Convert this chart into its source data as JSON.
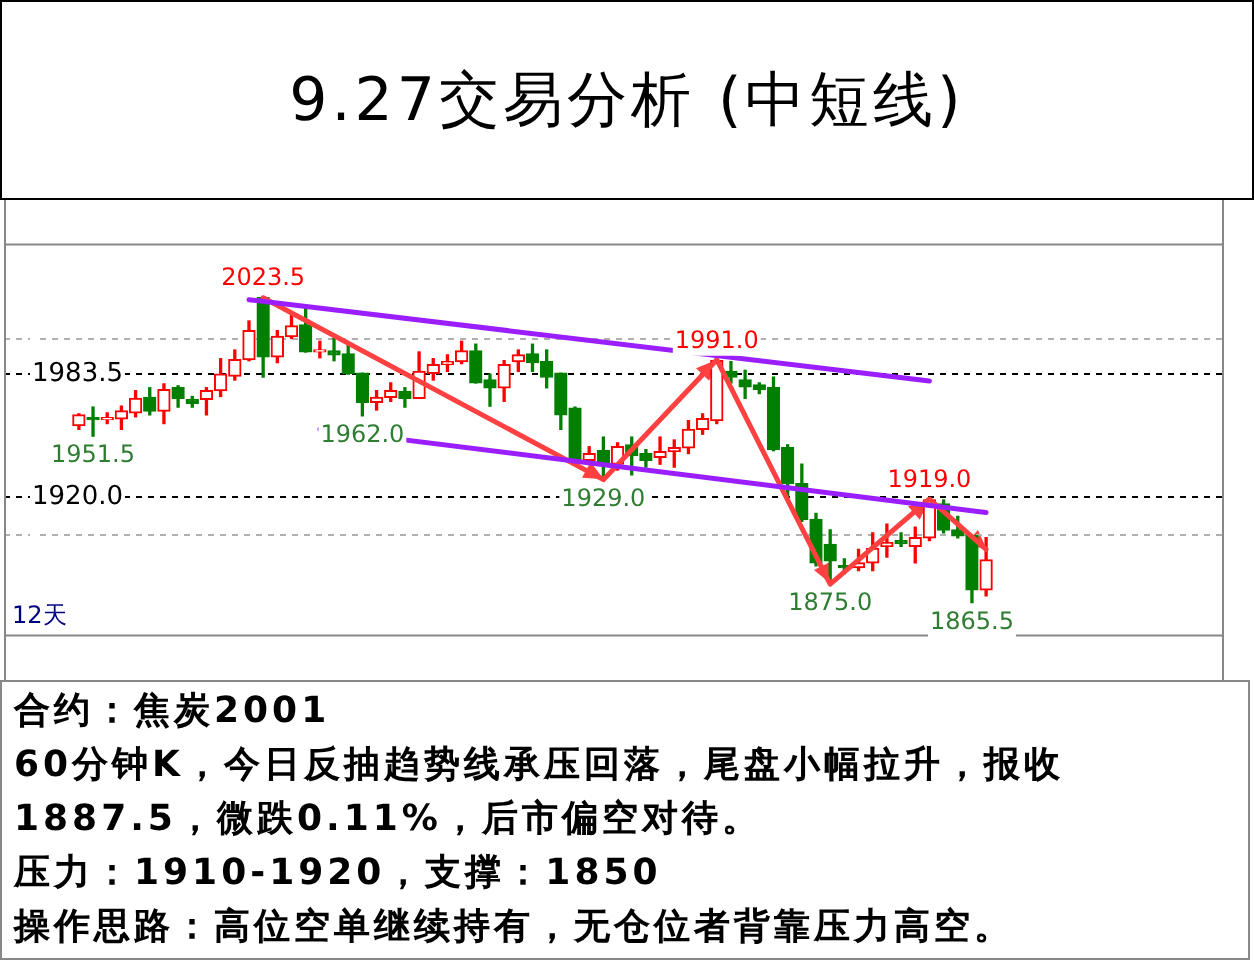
{
  "chart_data": [
    {
      "type": "candlestick",
      "title": "9.27交易分析 (中短线)",
      "categories": [
        null,
        null,
        null,
        null,
        null,
        null,
        null,
        null,
        null,
        null,
        null,
        null,
        null,
        null,
        null,
        null,
        null,
        null,
        null,
        null,
        null,
        null,
        null,
        null,
        null,
        null,
        null,
        null,
        null,
        null,
        null,
        null,
        null,
        null,
        null,
        null,
        null,
        null,
        null,
        null,
        null,
        null,
        null,
        null,
        null,
        null,
        null,
        null,
        null,
        null,
        null,
        null,
        null,
        null,
        null,
        null,
        null,
        null,
        null,
        null,
        null,
        null,
        null,
        null,
        null
      ],
      "ohlc": [
        [
          1957,
          1963,
          1955,
          1962.5
        ],
        [
          1960.5,
          1966.5,
          1951.5,
          1960
        ],
        [
          1960,
          1963.5,
          1958,
          1960.5
        ],
        [
          1960.5,
          1967,
          1955,
          1964.5
        ],
        [
          1963.5,
          1975,
          1961.5,
          1971
        ],
        [
          1971.5,
          1976.5,
          1962.5,
          1964.5
        ],
        [
          1964.5,
          1978.5,
          1958,
          1975.5
        ],
        [
          1976.5,
          1977.5,
          1966.5,
          1971
        ],
        [
          1970.5,
          1972,
          1966.5,
          1968.5
        ],
        [
          1970.5,
          1976.5,
          1962.5,
          1975
        ],
        [
          1975,
          1991.5,
          1972,
          1983.5
        ],
        [
          1982.5,
          1996,
          1980.5,
          1991
        ],
        [
          1991,
          2011,
          1990.5,
          2006
        ],
        [
          2023,
          2023.5,
          1982,
          1992.5
        ],
        [
          1992.5,
          2006,
          1989.5,
          2003
        ],
        [
          2003,
          2014.5,
          2002,
          2008.5
        ],
        [
          2009,
          2018,
          1995,
          1995
        ],
        [
          1995,
          2000.5,
          1992,
          1995.5
        ],
        [
          1995.5,
          2002,
          1990.5,
          1993.5
        ],
        [
          1994,
          1999,
          1983.5,
          1984
        ],
        [
          1984,
          1984,
          1962,
          1969
        ],
        [
          1969,
          1975,
          1965,
          1971.5
        ],
        [
          1971.5,
          1979,
          1969.5,
          1975
        ],
        [
          1974.5,
          1976.5,
          1966.5,
          1971
        ],
        [
          1971,
          1995,
          1971,
          1985
        ],
        [
          1984,
          1991.5,
          1980.5,
          1988.5
        ],
        [
          1988.5,
          1993.5,
          1985,
          1990
        ],
        [
          1990,
          2000.5,
          1989,
          1995.5
        ],
        [
          1995.5,
          1999,
          1979,
          1979
        ],
        [
          1980.5,
          1983.5,
          1967,
          1976.5
        ],
        [
          1976.5,
          1990.5,
          1969.5,
          1988.5
        ],
        [
          1990,
          1996,
          1985,
          1993.5
        ],
        [
          1994,
          1999,
          1985,
          1989.5
        ],
        [
          1990,
          1996,
          1976.5,
          1982
        ],
        [
          1984,
          1984,
          1955,
          1962.5
        ],
        [
          1966,
          1966.5,
          1938.5,
          1939.5
        ],
        [
          1939,
          1946,
          1937,
          1942.5
        ],
        [
          1944,
          1951,
          1929,
          1937
        ],
        [
          1937,
          1948,
          1934,
          1946
        ],
        [
          1947,
          1951,
          1931.5,
          1941.5
        ],
        [
          1942.5,
          1944.5,
          1935.5,
          1939
        ],
        [
          1940.5,
          1951,
          1937,
          1943.5
        ],
        [
          1943.5,
          1949.5,
          1935.5,
          1945.5
        ],
        [
          1945.5,
          1959.5,
          1942.5,
          1955
        ],
        [
          1955,
          1963,
          1952.5,
          1960.5
        ],
        [
          1959.5,
          1991,
          1958,
          1990.5
        ],
        [
          1985,
          1990,
          1979,
          1982
        ],
        [
          1980.5,
          1985.5,
          1971,
          1977
        ],
        [
          1978,
          1979,
          1973.5,
          1975.5
        ],
        [
          1976.5,
          1982,
          1944,
          1944.5
        ],
        [
          1945.5,
          1947,
          1920,
          1927
        ],
        [
          1927,
          1937,
          1907.5,
          1908.5
        ],
        [
          1908.5,
          1911.5,
          1884.5,
          1886
        ],
        [
          1895.5,
          1903,
          1875,
          1887
        ],
        [
          1884.5,
          1888,
          1880.5,
          1883.5
        ],
        [
          1883.5,
          1893,
          1882,
          1886
        ],
        [
          1886,
          1901.5,
          1882,
          1893.5
        ],
        [
          1894.5,
          1906,
          1889,
          1896.5
        ],
        [
          1897.5,
          1901.5,
          1894.5,
          1896
        ],
        [
          1894.5,
          1904.5,
          1886,
          1899
        ],
        [
          1899,
          1919,
          1897.5,
          1918.5
        ],
        [
          1916.5,
          1918.5,
          1901.5,
          1903
        ],
        [
          1903,
          1910,
          1899,
          1900
        ],
        [
          1900,
          1900,
          1865.5,
          1872
        ],
        [
          1872,
          1899,
          1869,
          1887.5
        ]
      ],
      "colors": [
        "#ff0000",
        "#007f00",
        "#ff0000",
        "#ff0000",
        "#ff0000",
        "#007f00",
        "#ff0000",
        "#007f00",
        "#007f00",
        "#ff0000",
        "#ff0000",
        "#ff0000",
        "#ff0000",
        "#007f00",
        "#ff0000",
        "#ff0000",
        "#007f00",
        "#ff0000",
        "#007f00",
        "#007f00",
        "#007f00",
        "#ff0000",
        "#ff0000",
        "#007f00",
        "#ff0000",
        "#ff0000",
        "#ff0000",
        "#ff0000",
        "#007f00",
        "#007f00",
        "#ff0000",
        "#ff0000",
        "#007f00",
        "#007f00",
        "#007f00",
        "#007f00",
        "#ff0000",
        "#007f00",
        "#ff0000",
        "#007f00",
        "#007f00",
        "#ff0000",
        "#ff0000",
        "#ff0000",
        "#ff0000",
        "#ff0000",
        "#007f00",
        "#007f00",
        "#007f00",
        "#007f00",
        "#007f00",
        "#007f00",
        "#007f00",
        "#007f00",
        "#007f00",
        "#ff0000",
        "#ff0000",
        "#ff0000",
        "#007f00",
        "#ff0000",
        "#ff0000",
        "#007f00",
        "#007f00",
        "#007f00",
        "#ff0000"
      ],
      "series": [
        {
          "type": "line",
          "color": "#9b1eff",
          "values": [
            null,
            null,
            null,
            null,
            null,
            null,
            null,
            null,
            null,
            null,
            null,
            null,
            2022,
            null,
            null,
            null,
            null,
            null,
            null,
            null,
            null,
            null,
            null,
            null,
            null,
            null,
            null,
            null,
            null,
            null,
            null,
            null,
            null,
            null,
            null,
            null,
            null,
            null,
            null,
            null,
            null,
            null,
            null,
            null,
            null,
            null,
            null,
            null,
            null,
            null,
            null,
            null,
            null,
            null,
            null,
            null,
            null,
            null,
            null,
            null,
            1980,
            null,
            null,
            null,
            null
          ]
        },
        {
          "type": "line",
          "color": "#9b1eff",
          "values": [
            null,
            null,
            null,
            null,
            null,
            null,
            null,
            null,
            null,
            null,
            null,
            null,
            null,
            null,
            null,
            null,
            null,
            1955,
            null,
            null,
            null,
            null,
            null,
            null,
            null,
            null,
            null,
            null,
            null,
            null,
            null,
            null,
            null,
            null,
            null,
            null,
            null,
            null,
            null,
            null,
            null,
            null,
            null,
            null,
            null,
            null,
            null,
            null,
            null,
            null,
            null,
            null,
            null,
            null,
            null,
            null,
            null,
            null,
            null,
            null,
            null,
            null,
            null,
            null,
            1912
          ]
        },
        {
          "type": "line",
          "color": "#ff4040",
          "values": [
            null,
            null,
            null,
            null,
            null,
            null,
            null,
            null,
            null,
            null,
            null,
            null,
            null,
            2023,
            null,
            null,
            null,
            null,
            null,
            null,
            null,
            null,
            null,
            null,
            null,
            null,
            null,
            null,
            null,
            null,
            null,
            null,
            null,
            null,
            null,
            null,
            null,
            1929,
            null,
            null,
            null,
            null,
            null,
            null,
            null,
            1991,
            null,
            null,
            null,
            null,
            null,
            null,
            null,
            1875,
            null,
            null,
            null,
            null,
            null,
            null,
            1919,
            null,
            null,
            null,
            1893
          ]
        }
      ],
      "ylim": [
        1848,
        2051
      ],
      "yticks": [
        {
          "value": 2001.5,
          "label": null
        },
        1983.5,
        {
          "value": 1920,
          "label": "1920.0"
        },
        {
          "value": 1900.5,
          "label": null
        }
      ],
      "grid": "y",
      "tick_labels": "y",
      "annotations": [
        {
          "text": "2023.5",
          "y": 2023.5
        },
        {
          "text": "1962.0",
          "y": 1962
        },
        {
          "text": "1951.5",
          "y": 1951.5
        },
        {
          "text": "1929.0",
          "y": 1929
        },
        {
          "text": "1991.0",
          "y": 1991
        },
        {
          "text": "1875.0",
          "y": 1875
        },
        {
          "text": "1919.0",
          "y": 1919
        },
        {
          "text": "1865.5",
          "y": 1865.5
        },
        "12天"
      ]
    },
    {
      "type": "other",
      "annotations": [
        "合约：焦炭2001",
        "60分钟K，今日反抽趋势线承压回落，尾盘小幅拉升，报收1887.5，微跌0.11%，后市偏空对待。",
        "压力：1910-1920，支撑：1850",
        "操作思路：高位空单继续持有，无仓位者背靠压力高空。"
      ]
    }
  ]
}
